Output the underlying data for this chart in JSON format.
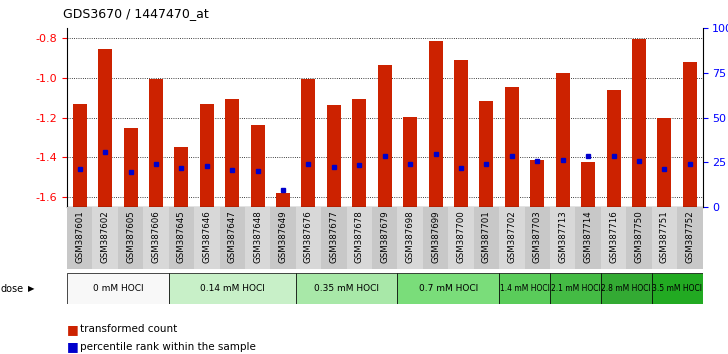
{
  "title": "GDS3670 / 1447470_at",
  "samples": [
    "GSM387601",
    "GSM387602",
    "GSM387605",
    "GSM387606",
    "GSM387645",
    "GSM387646",
    "GSM387647",
    "GSM387648",
    "GSM387649",
    "GSM387676",
    "GSM387677",
    "GSM387678",
    "GSM387679",
    "GSM387698",
    "GSM387699",
    "GSM387700",
    "GSM387701",
    "GSM387702",
    "GSM387703",
    "GSM387713",
    "GSM387714",
    "GSM387716",
    "GSM387750",
    "GSM387751",
    "GSM387752"
  ],
  "bar_values": [
    -1.13,
    -0.855,
    -1.25,
    -1.005,
    -1.345,
    -1.13,
    -1.105,
    -1.235,
    -1.58,
    -1.005,
    -1.135,
    -1.105,
    -0.935,
    -1.195,
    -0.815,
    -0.91,
    -1.115,
    -1.045,
    -1.415,
    -0.975,
    -1.425,
    -1.06,
    -0.805,
    -1.2,
    -0.92
  ],
  "percentile_values": [
    -1.46,
    -1.375,
    -1.475,
    -1.435,
    -1.455,
    -1.445,
    -1.465,
    -1.47,
    -1.565,
    -1.435,
    -1.45,
    -1.44,
    -1.395,
    -1.435,
    -1.385,
    -1.455,
    -1.435,
    -1.395,
    -1.42,
    -1.415,
    -1.395,
    -1.395,
    -1.42,
    -1.46,
    -1.435
  ],
  "dose_groups": [
    {
      "label": "0 mM HOCl",
      "start": 0,
      "end": 3,
      "color": "#f8f8f8"
    },
    {
      "label": "0.14 mM HOCl",
      "start": 4,
      "end": 8,
      "color": "#c8f0c8"
    },
    {
      "label": "0.35 mM HOCl",
      "start": 9,
      "end": 12,
      "color": "#a8e8a8"
    },
    {
      "label": "0.7 mM HOCl",
      "start": 13,
      "end": 16,
      "color": "#7add7a"
    },
    {
      "label": "1.4 mM HOCl",
      "start": 17,
      "end": 18,
      "color": "#5acc5a"
    },
    {
      "label": "2.1 mM HOCl",
      "start": 19,
      "end": 20,
      "color": "#44bb44"
    },
    {
      "label": "2.8 mM HOCl",
      "start": 21,
      "end": 22,
      "color": "#33aa33"
    },
    {
      "label": "3.5 mM HOCl",
      "start": 23,
      "end": 24,
      "color": "#22aa22"
    }
  ],
  "ylim_left": [
    -1.65,
    -0.75
  ],
  "yticks_left": [
    -1.6,
    -1.4,
    -1.2,
    -1.0,
    -0.8
  ],
  "yticks_right": [
    0,
    25,
    50,
    75,
    100
  ],
  "bar_color": "#cc2200",
  "percentile_color": "#0000cc"
}
